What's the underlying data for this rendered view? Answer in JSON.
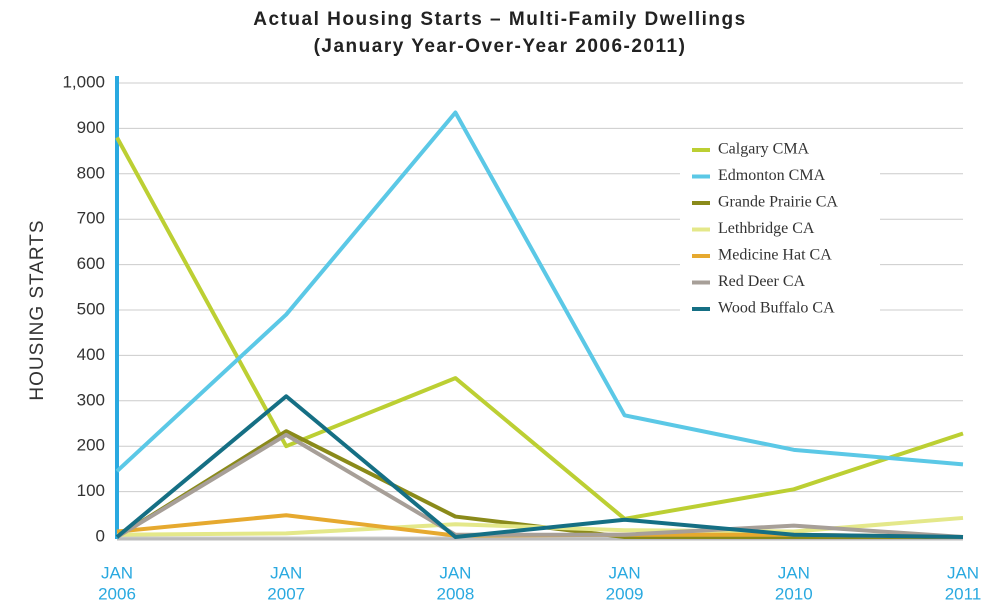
{
  "chart_data": {
    "type": "line",
    "title": "Actual Housing Starts – Multi-Family Dwellings",
    "subtitle": "(January Year-Over-Year 2006-2011)",
    "y_label": "HOUSING STARTS",
    "categories": [
      [
        "JAN",
        "2006"
      ],
      [
        "JAN",
        "2007"
      ],
      [
        "JAN",
        "2008"
      ],
      [
        "JAN",
        "2009"
      ],
      [
        "JAN",
        "2010"
      ],
      [
        "JAN",
        "2011"
      ]
    ],
    "series": [
      {
        "name": "Calgary CMA",
        "color": "#bccf33",
        "values": [
          880,
          200,
          350,
          40,
          105,
          228
        ]
      },
      {
        "name": "Edmonton CMA",
        "color": "#5bc8e6",
        "values": [
          145,
          490,
          935,
          268,
          192,
          160
        ]
      },
      {
        "name": "Grande Prairie CA",
        "color": "#8a8a1a",
        "values": [
          0,
          233,
          45,
          0,
          0,
          0
        ]
      },
      {
        "name": "Lethbridge CA",
        "color": "#e4e88a",
        "values": [
          5,
          8,
          28,
          15,
          12,
          42
        ]
      },
      {
        "name": "Medicine Hat CA",
        "color": "#e6a92f",
        "values": [
          12,
          48,
          3,
          5,
          5,
          0
        ]
      },
      {
        "name": "Red Deer CA",
        "color": "#a79f98",
        "values": [
          0,
          225,
          5,
          5,
          25,
          0
        ]
      },
      {
        "name": "Wood Buffalo CA",
        "color": "#156f84",
        "values": [
          0,
          310,
          0,
          38,
          5,
          0
        ]
      }
    ],
    "ylim": [
      0,
      1000
    ],
    "yticks": [
      0,
      100,
      200,
      300,
      400,
      500,
      600,
      700,
      800,
      900,
      {
        "value": 1000,
        "label": "1,000"
      }
    ],
    "grid": true,
    "legend": "upper right"
  }
}
